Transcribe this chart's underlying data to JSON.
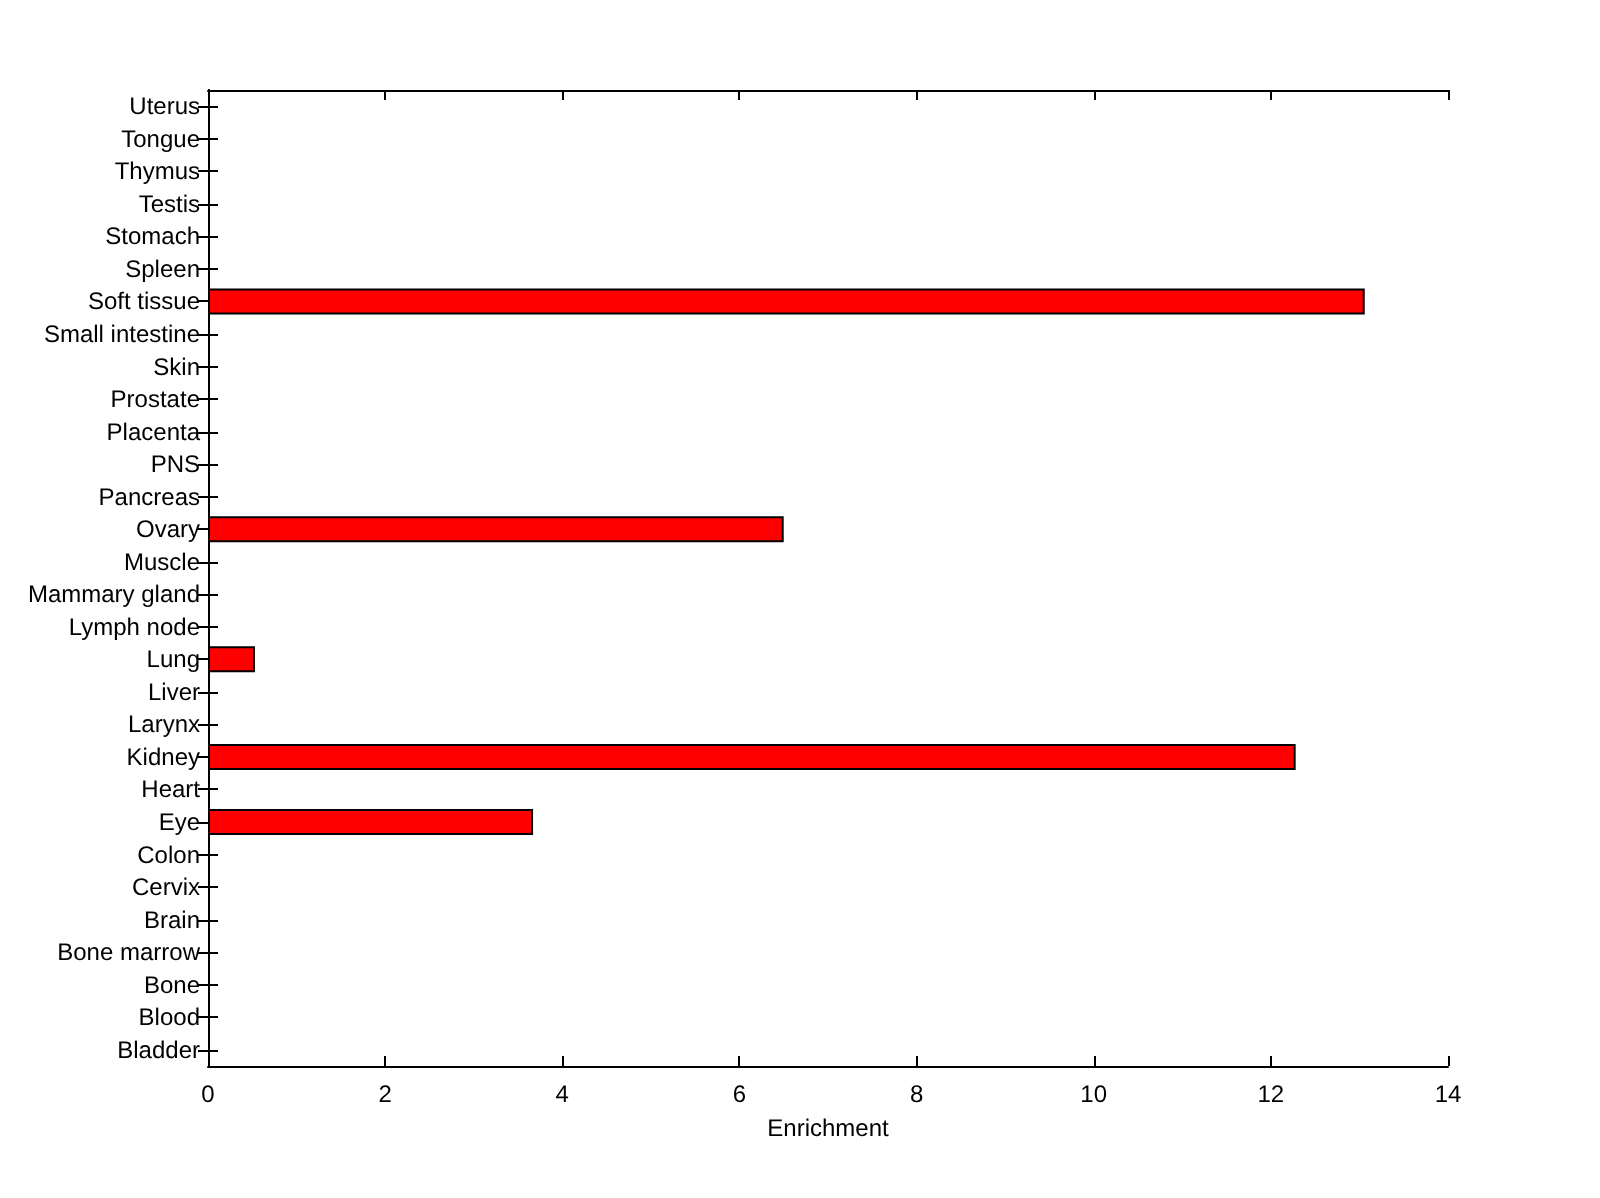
{
  "chart_data": {
    "type": "bar",
    "orientation": "horizontal",
    "xlabel": "Enrichment",
    "categories": [
      "Uterus",
      "Tongue",
      "Thymus",
      "Testis",
      "Stomach",
      "Spleen",
      "Soft tissue",
      "Small intestine",
      "Skin",
      "Prostate",
      "Placenta",
      "PNS",
      "Pancreas",
      "Ovary",
      "Muscle",
      "Mammary gland",
      "Lymph node",
      "Lung",
      "Liver",
      "Larynx",
      "Kidney",
      "Heart",
      "Eye",
      "Colon",
      "Cervix",
      "Brain",
      "Bone marrow",
      "Bone",
      "Blood",
      "Bladder"
    ],
    "values": [
      0,
      0,
      0,
      0,
      0,
      0,
      13.06,
      0,
      0,
      0,
      0,
      0,
      0,
      6.5,
      0,
      0,
      0,
      0.53,
      0,
      0,
      12.28,
      0,
      3.67,
      0,
      0,
      0,
      0,
      0,
      0,
      0
    ],
    "color": "#ff0000",
    "xlim": [
      0,
      14
    ],
    "xticks": [
      0,
      2,
      4,
      6,
      8,
      10,
      12,
      14
    ],
    "grid": false
  }
}
